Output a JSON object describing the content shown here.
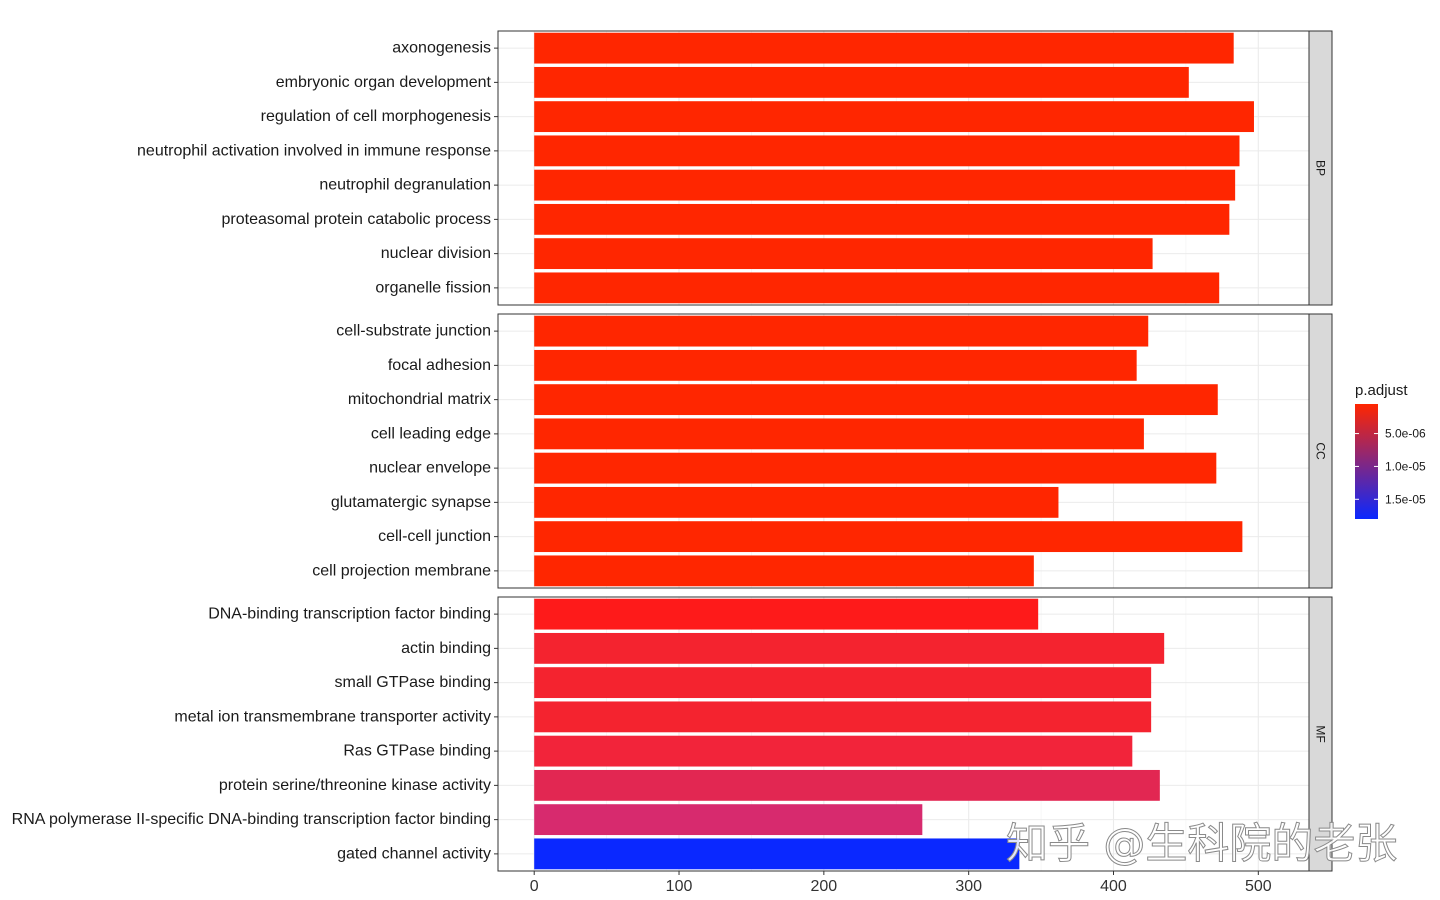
{
  "chart_data": {
    "type": "bar",
    "orientation": "horizontal",
    "xlim": [
      -25,
      535
    ],
    "x_ticks": [
      0,
      100,
      200,
      300,
      400,
      500
    ],
    "x_tick_labels": [
      "0",
      "100",
      "200",
      "300",
      "400",
      "500"
    ],
    "xlabel": "",
    "ylabel": "",
    "grid": true,
    "facets": [
      {
        "name": "BP",
        "categories": [
          "axonogenesis",
          "embryonic organ development",
          "regulation of cell morphogenesis",
          "neutrophil activation involved in immune response",
          "neutrophil degranulation",
          "proteasomal protein catabolic process",
          "nuclear division",
          "organelle fission"
        ],
        "values": [
          483,
          452,
          497,
          487,
          484,
          480,
          427,
          473
        ],
        "colors": [
          "#ff2600",
          "#ff2600",
          "#ff2600",
          "#ff2600",
          "#ff2600",
          "#ff2600",
          "#ff2600",
          "#ff2600"
        ]
      },
      {
        "name": "CC",
        "categories": [
          "cell-substrate junction",
          "focal adhesion",
          "mitochondrial matrix",
          "cell leading edge",
          "nuclear envelope",
          "glutamatergic synapse",
          "cell-cell junction",
          "cell projection membrane"
        ],
        "values": [
          424,
          416,
          472,
          421,
          471,
          362,
          489,
          345
        ],
        "colors": [
          "#ff2600",
          "#ff2600",
          "#ff2600",
          "#ff2600",
          "#ff2600",
          "#ff2600",
          "#ff2600",
          "#ff2600"
        ]
      },
      {
        "name": "MF",
        "categories": [
          "DNA-binding transcription factor binding",
          "actin binding",
          "small GTPase binding",
          "metal ion transmembrane transporter activity",
          "Ras GTPase binding",
          "protein serine/threonine kinase activity",
          "RNA polymerase II-specific DNA-binding transcription factor binding",
          "gated channel activity"
        ],
        "values": [
          348,
          435,
          426,
          426,
          413,
          432,
          268,
          335
        ],
        "colors": [
          "#fe1a1a",
          "#f4232f",
          "#f4232f",
          "#f4232f",
          "#f2243a",
          "#e22752",
          "#d72a6e",
          "#0a28ff"
        ]
      }
    ],
    "legend": {
      "title": "p.adjust",
      "position": "right",
      "tick_labels": [
        "5.0e-06",
        "1.0e-05",
        "1.5e-05"
      ],
      "tick_values": [
        5e-06,
        1e-05,
        1.5e-05
      ],
      "range": [
        5e-07,
        1.8e-05
      ],
      "gradient": [
        "#ff2600",
        "#0a28ff"
      ]
    }
  },
  "watermark": "知乎 @生科院的老张"
}
